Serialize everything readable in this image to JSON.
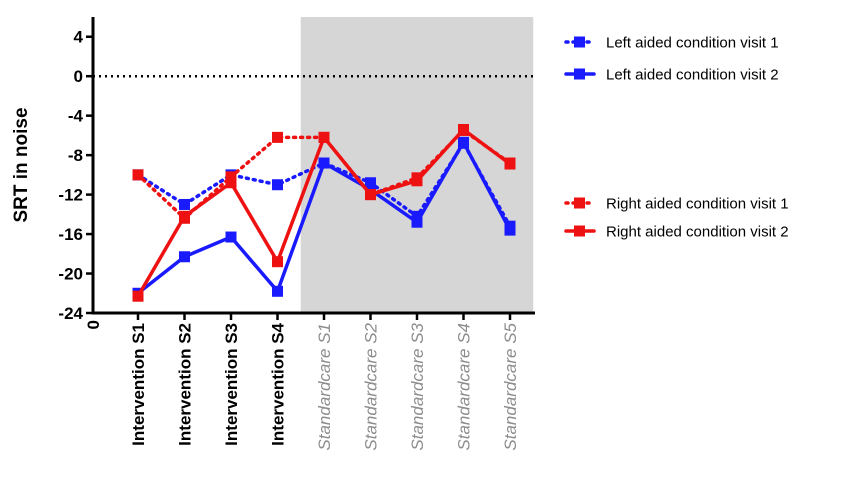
{
  "chart_data": {
    "type": "line",
    "ylabel": "SRT in noise",
    "xlabel": "",
    "title": "",
    "ylim": [
      -24,
      6
    ],
    "yticks": [
      4,
      0,
      -4,
      -8,
      -12,
      -16,
      -20,
      -24
    ],
    "x_origin_label": "0",
    "categories": [
      "Intervention S1",
      "Intervention S2",
      "Intervention S3",
      "Intervention S4",
      "Standardcare S1",
      "Standardcare S2",
      "Standardcare S3",
      "Standardcare S4",
      "Standardcare S5"
    ],
    "category_styles": [
      "bold",
      "bold",
      "bold",
      "bold",
      "italic-gray",
      "italic-gray",
      "italic-gray",
      "italic-gray",
      "italic-gray"
    ],
    "shaded_region": {
      "from": "Standardcare S1",
      "to": "Standardcare S5",
      "color": "#d6d6d6"
    },
    "reference_line": {
      "y": 0,
      "style": "dotted",
      "color": "#000000"
    },
    "grid": false,
    "legend_position": "right",
    "series": [
      {
        "name": "Left aided condition visit 1",
        "color": "#1a1aff",
        "dash": "dotted",
        "values": [
          -10.0,
          -13.0,
          -10.0,
          -11.0,
          -8.8,
          -10.8,
          -14.2,
          -6.8,
          -15.2
        ]
      },
      {
        "name": "Left  aided condition visit 2",
        "color": "#1a1aff",
        "dash": "solid",
        "values": [
          -22.0,
          -18.3,
          -16.3,
          -21.8,
          -8.8,
          -11.5,
          -14.8,
          -6.7,
          -15.6
        ]
      },
      {
        "name": "Right aided condition visit 1",
        "color": "#ee1111",
        "dash": "dotted",
        "values": [
          -10.0,
          -14.4,
          -10.2,
          -6.2,
          -6.2,
          -12.0,
          -10.3,
          -5.5,
          -8.8
        ]
      },
      {
        "name": "Right  aided condition visit 2",
        "color": "#ee1111",
        "dash": "solid",
        "values": [
          -22.3,
          -14.2,
          -10.8,
          -18.8,
          -6.2,
          -12.0,
          -10.6,
          -5.4,
          -8.9
        ]
      }
    ]
  }
}
